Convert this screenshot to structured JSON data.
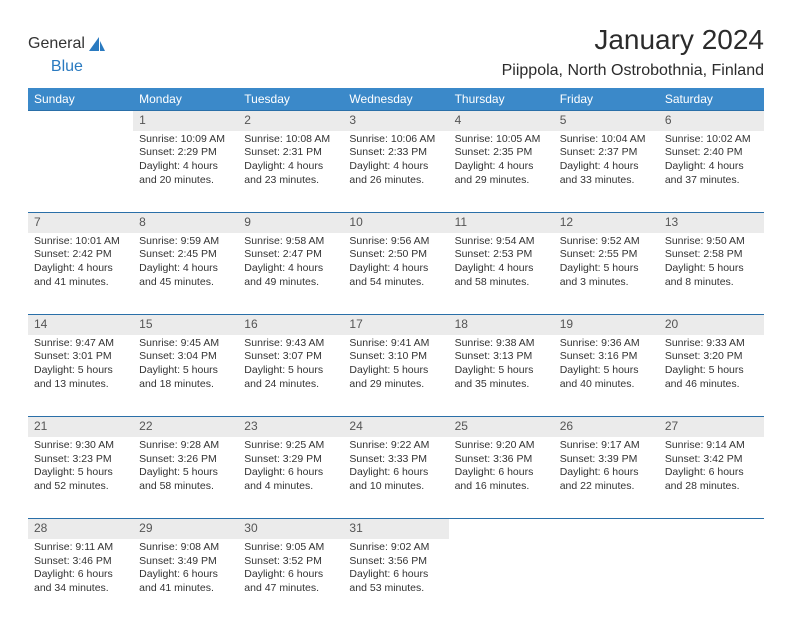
{
  "logo": {
    "word1": "General",
    "word2": "Blue",
    "icon_color": "#2a7ac0"
  },
  "title": "January 2024",
  "location": "Piippola, North Ostrobothnia, Finland",
  "colors": {
    "header_bg": "#3b89c9",
    "header_text": "#ffffff",
    "rule": "#2a6fa8",
    "daynum_bg": "#ebebeb",
    "text": "#333333"
  },
  "day_headers": [
    "Sunday",
    "Monday",
    "Tuesday",
    "Wednesday",
    "Thursday",
    "Friday",
    "Saturday"
  ],
  "weeks": [
    [
      null,
      {
        "n": "1",
        "sr": "Sunrise: 10:09 AM",
        "ss": "Sunset: 2:29 PM",
        "dl": "Daylight: 4 hours and 20 minutes."
      },
      {
        "n": "2",
        "sr": "Sunrise: 10:08 AM",
        "ss": "Sunset: 2:31 PM",
        "dl": "Daylight: 4 hours and 23 minutes."
      },
      {
        "n": "3",
        "sr": "Sunrise: 10:06 AM",
        "ss": "Sunset: 2:33 PM",
        "dl": "Daylight: 4 hours and 26 minutes."
      },
      {
        "n": "4",
        "sr": "Sunrise: 10:05 AM",
        "ss": "Sunset: 2:35 PM",
        "dl": "Daylight: 4 hours and 29 minutes."
      },
      {
        "n": "5",
        "sr": "Sunrise: 10:04 AM",
        "ss": "Sunset: 2:37 PM",
        "dl": "Daylight: 4 hours and 33 minutes."
      },
      {
        "n": "6",
        "sr": "Sunrise: 10:02 AM",
        "ss": "Sunset: 2:40 PM",
        "dl": "Daylight: 4 hours and 37 minutes."
      }
    ],
    [
      {
        "n": "7",
        "sr": "Sunrise: 10:01 AM",
        "ss": "Sunset: 2:42 PM",
        "dl": "Daylight: 4 hours and 41 minutes."
      },
      {
        "n": "8",
        "sr": "Sunrise: 9:59 AM",
        "ss": "Sunset: 2:45 PM",
        "dl": "Daylight: 4 hours and 45 minutes."
      },
      {
        "n": "9",
        "sr": "Sunrise: 9:58 AM",
        "ss": "Sunset: 2:47 PM",
        "dl": "Daylight: 4 hours and 49 minutes."
      },
      {
        "n": "10",
        "sr": "Sunrise: 9:56 AM",
        "ss": "Sunset: 2:50 PM",
        "dl": "Daylight: 4 hours and 54 minutes."
      },
      {
        "n": "11",
        "sr": "Sunrise: 9:54 AM",
        "ss": "Sunset: 2:53 PM",
        "dl": "Daylight: 4 hours and 58 minutes."
      },
      {
        "n": "12",
        "sr": "Sunrise: 9:52 AM",
        "ss": "Sunset: 2:55 PM",
        "dl": "Daylight: 5 hours and 3 minutes."
      },
      {
        "n": "13",
        "sr": "Sunrise: 9:50 AM",
        "ss": "Sunset: 2:58 PM",
        "dl": "Daylight: 5 hours and 8 minutes."
      }
    ],
    [
      {
        "n": "14",
        "sr": "Sunrise: 9:47 AM",
        "ss": "Sunset: 3:01 PM",
        "dl": "Daylight: 5 hours and 13 minutes."
      },
      {
        "n": "15",
        "sr": "Sunrise: 9:45 AM",
        "ss": "Sunset: 3:04 PM",
        "dl": "Daylight: 5 hours and 18 minutes."
      },
      {
        "n": "16",
        "sr": "Sunrise: 9:43 AM",
        "ss": "Sunset: 3:07 PM",
        "dl": "Daylight: 5 hours and 24 minutes."
      },
      {
        "n": "17",
        "sr": "Sunrise: 9:41 AM",
        "ss": "Sunset: 3:10 PM",
        "dl": "Daylight: 5 hours and 29 minutes."
      },
      {
        "n": "18",
        "sr": "Sunrise: 9:38 AM",
        "ss": "Sunset: 3:13 PM",
        "dl": "Daylight: 5 hours and 35 minutes."
      },
      {
        "n": "19",
        "sr": "Sunrise: 9:36 AM",
        "ss": "Sunset: 3:16 PM",
        "dl": "Daylight: 5 hours and 40 minutes."
      },
      {
        "n": "20",
        "sr": "Sunrise: 9:33 AM",
        "ss": "Sunset: 3:20 PM",
        "dl": "Daylight: 5 hours and 46 minutes."
      }
    ],
    [
      {
        "n": "21",
        "sr": "Sunrise: 9:30 AM",
        "ss": "Sunset: 3:23 PM",
        "dl": "Daylight: 5 hours and 52 minutes."
      },
      {
        "n": "22",
        "sr": "Sunrise: 9:28 AM",
        "ss": "Sunset: 3:26 PM",
        "dl": "Daylight: 5 hours and 58 minutes."
      },
      {
        "n": "23",
        "sr": "Sunrise: 9:25 AM",
        "ss": "Sunset: 3:29 PM",
        "dl": "Daylight: 6 hours and 4 minutes."
      },
      {
        "n": "24",
        "sr": "Sunrise: 9:22 AM",
        "ss": "Sunset: 3:33 PM",
        "dl": "Daylight: 6 hours and 10 minutes."
      },
      {
        "n": "25",
        "sr": "Sunrise: 9:20 AM",
        "ss": "Sunset: 3:36 PM",
        "dl": "Daylight: 6 hours and 16 minutes."
      },
      {
        "n": "26",
        "sr": "Sunrise: 9:17 AM",
        "ss": "Sunset: 3:39 PM",
        "dl": "Daylight: 6 hours and 22 minutes."
      },
      {
        "n": "27",
        "sr": "Sunrise: 9:14 AM",
        "ss": "Sunset: 3:42 PM",
        "dl": "Daylight: 6 hours and 28 minutes."
      }
    ],
    [
      {
        "n": "28",
        "sr": "Sunrise: 9:11 AM",
        "ss": "Sunset: 3:46 PM",
        "dl": "Daylight: 6 hours and 34 minutes."
      },
      {
        "n": "29",
        "sr": "Sunrise: 9:08 AM",
        "ss": "Sunset: 3:49 PM",
        "dl": "Daylight: 6 hours and 41 minutes."
      },
      {
        "n": "30",
        "sr": "Sunrise: 9:05 AM",
        "ss": "Sunset: 3:52 PM",
        "dl": "Daylight: 6 hours and 47 minutes."
      },
      {
        "n": "31",
        "sr": "Sunrise: 9:02 AM",
        "ss": "Sunset: 3:56 PM",
        "dl": "Daylight: 6 hours and 53 minutes."
      },
      null,
      null,
      null
    ]
  ]
}
